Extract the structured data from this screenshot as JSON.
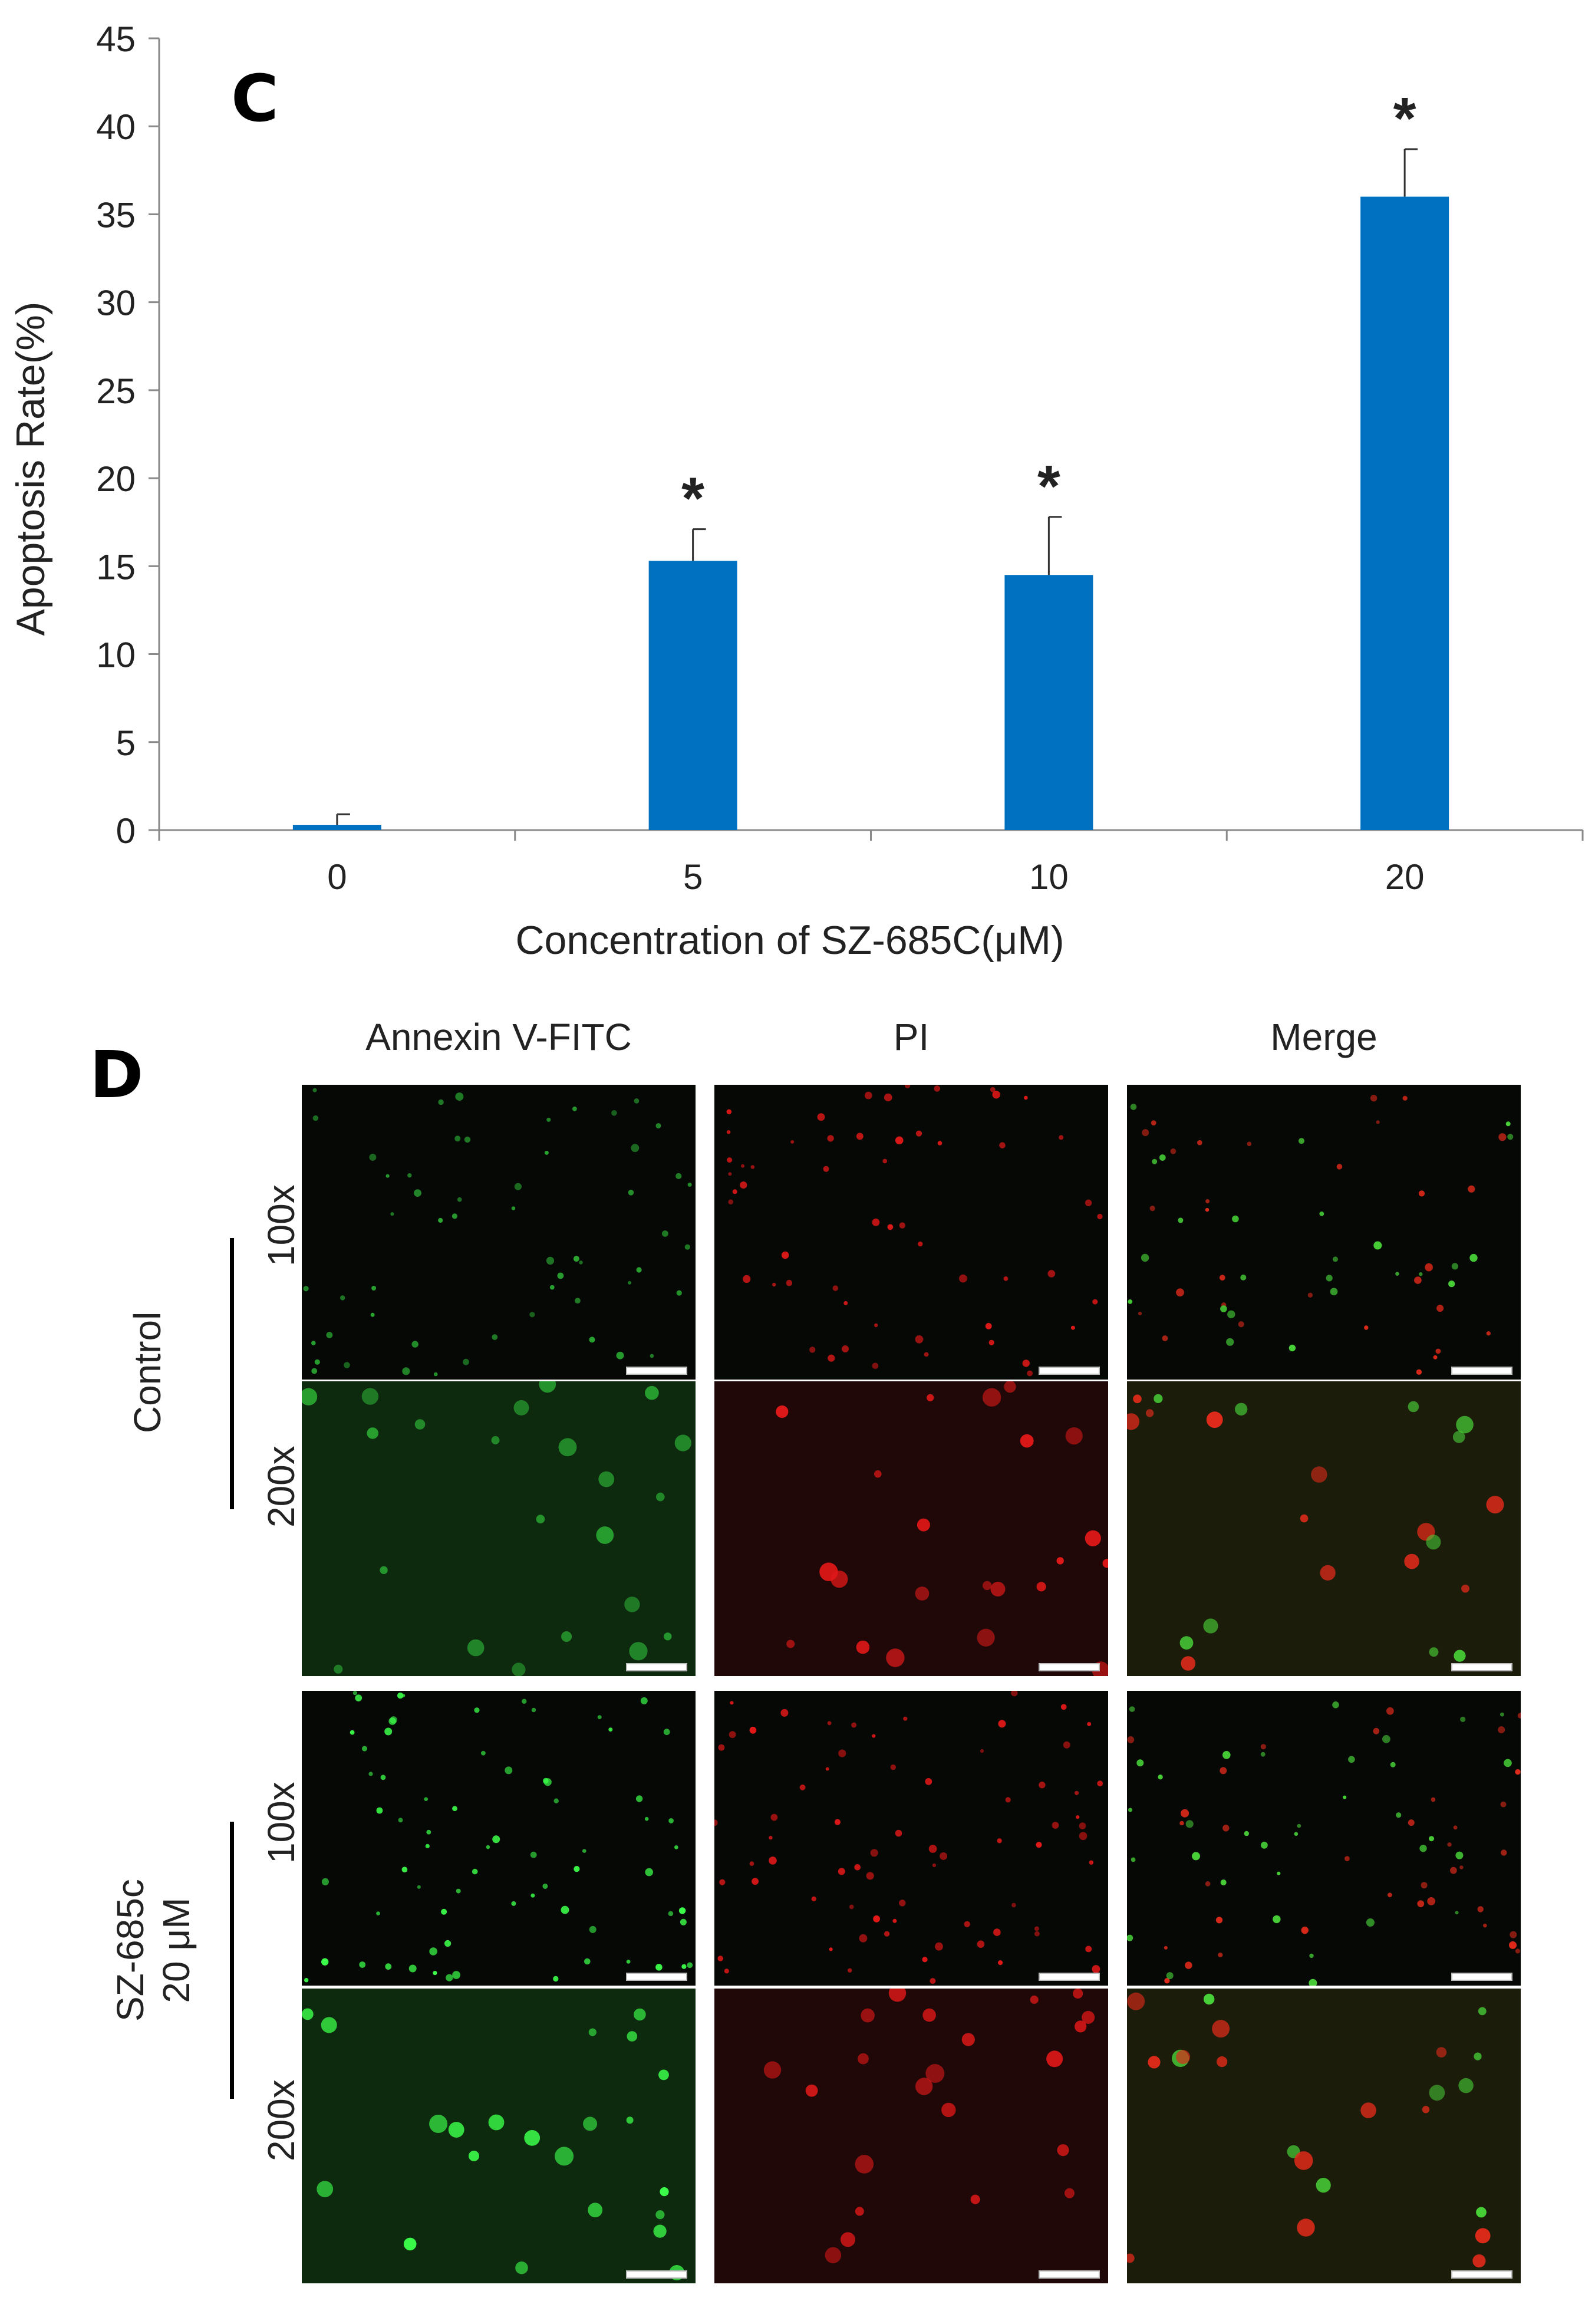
{
  "panel_c": {
    "letter": "C",
    "chart_data": {
      "type": "bar",
      "title": "",
      "xlabel": "Concentration of SZ-685C(μM)",
      "ylabel": "Apoptosis Rate(%)",
      "categories": [
        "0",
        "5",
        "10",
        "20"
      ],
      "values": [
        0.3,
        15.3,
        14.5,
        36.0
      ],
      "error": [
        0.6,
        1.8,
        3.3,
        2.7
      ],
      "significance": [
        "",
        "*",
        "*",
        "*"
      ],
      "ylim": [
        0,
        45
      ],
      "yticks": [
        0,
        5,
        10,
        15,
        20,
        25,
        30,
        35,
        40,
        45
      ],
      "grid": false,
      "legend": "none",
      "bar_color": "#0070c0"
    }
  },
  "panel_d": {
    "letter": "D",
    "columns": [
      "Annexin V-FITC",
      "PI",
      "Merge"
    ],
    "groups": [
      {
        "label_lines": [
          "Control"
        ],
        "rows": [
          "100x",
          "200x"
        ]
      },
      {
        "label_lines": [
          "SZ-685c",
          "20 μM"
        ],
        "rows": [
          "100x",
          "200x"
        ]
      }
    ]
  }
}
